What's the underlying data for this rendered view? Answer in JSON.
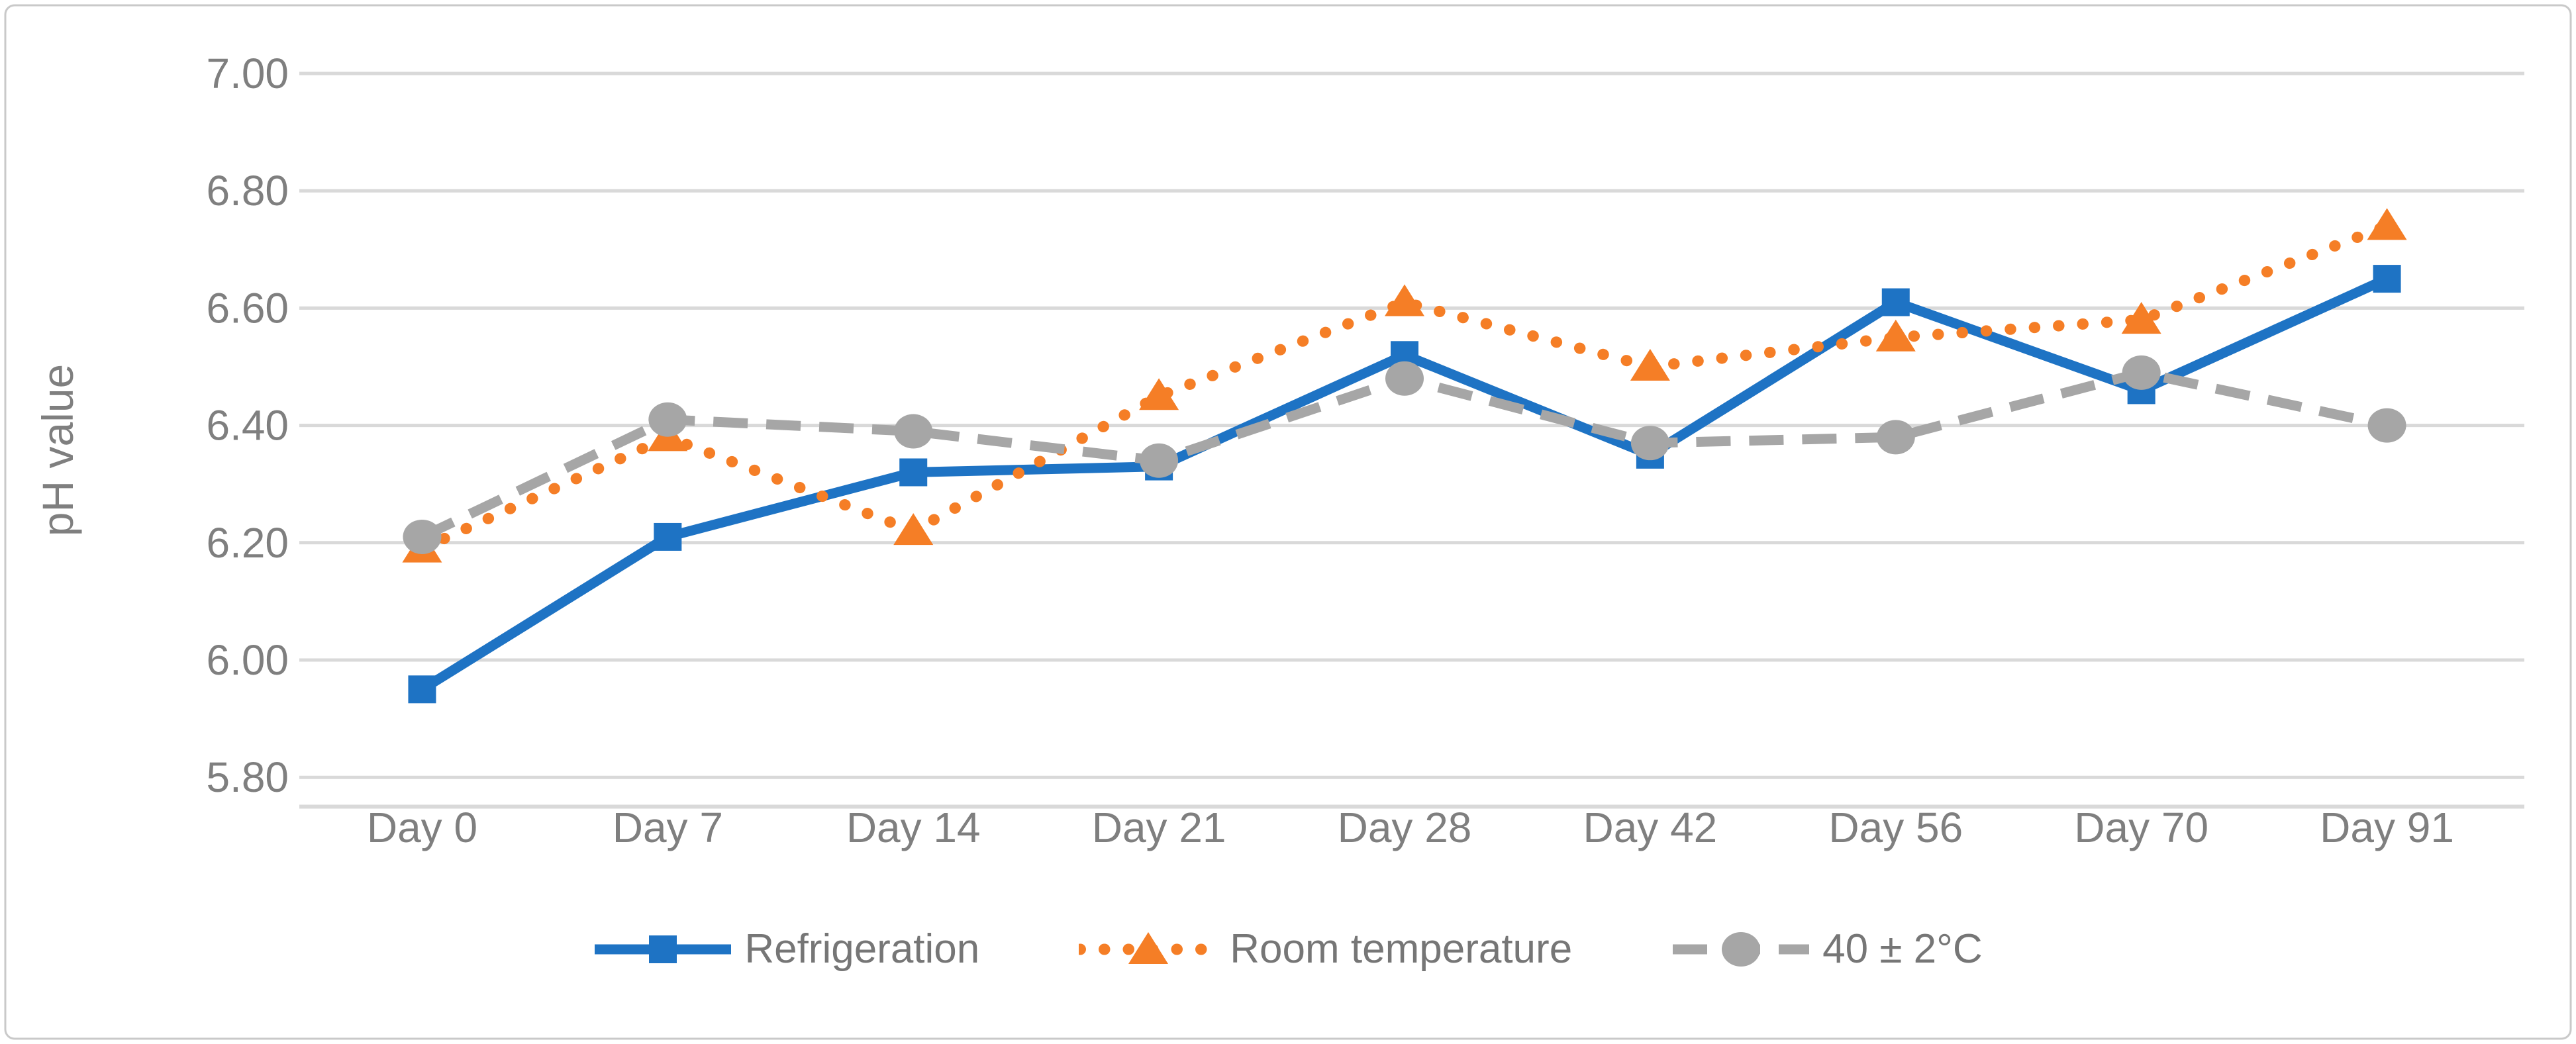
{
  "figure": {
    "background": "#ffffff",
    "border_color": "#c9c9c9",
    "gridline_color": "#d9d9d9",
    "axis_text_color": "#7f7f7f",
    "legend_text_color": "#767676"
  },
  "chart_data": {
    "type": "line",
    "title": "",
    "xlabel": "",
    "ylabel": "pH value",
    "categories": [
      "Day 0",
      "Day 7",
      "Day 14",
      "Day 21",
      "Day 28",
      "Day 42",
      "Day 56",
      "Day 70",
      "Day 91"
    ],
    "series": [
      {
        "name": "Refrigeration",
        "color": "#1e73c4",
        "line_style": "solid",
        "marker": "square",
        "values": [
          5.95,
          6.21,
          6.32,
          6.33,
          6.52,
          6.35,
          6.61,
          6.46,
          6.65
        ]
      },
      {
        "name": "Room temperature",
        "color": "#f57e26",
        "line_style": "dotted",
        "marker": "triangle",
        "values": [
          6.19,
          6.38,
          6.22,
          6.45,
          6.61,
          6.5,
          6.55,
          6.58,
          6.74
        ]
      },
      {
        "name": "40 ± 2°C",
        "color": "#a6a6a6",
        "line_style": "dashed",
        "marker": "circle",
        "values": [
          6.21,
          6.41,
          6.39,
          6.34,
          6.48,
          6.37,
          6.38,
          6.49,
          6.4
        ]
      }
    ],
    "y_axis": {
      "tick_labels": [
        "7.00",
        "6.80",
        "6.60",
        "6.40",
        "6.20",
        "6.00",
        "5.80"
      ],
      "tick_values": [
        7.0,
        6.8,
        6.6,
        6.4,
        6.2,
        6.0,
        5.8
      ],
      "axis_min": 5.75,
      "axis_max": 7.0
    },
    "grid": true,
    "legend_position": "bottom"
  }
}
